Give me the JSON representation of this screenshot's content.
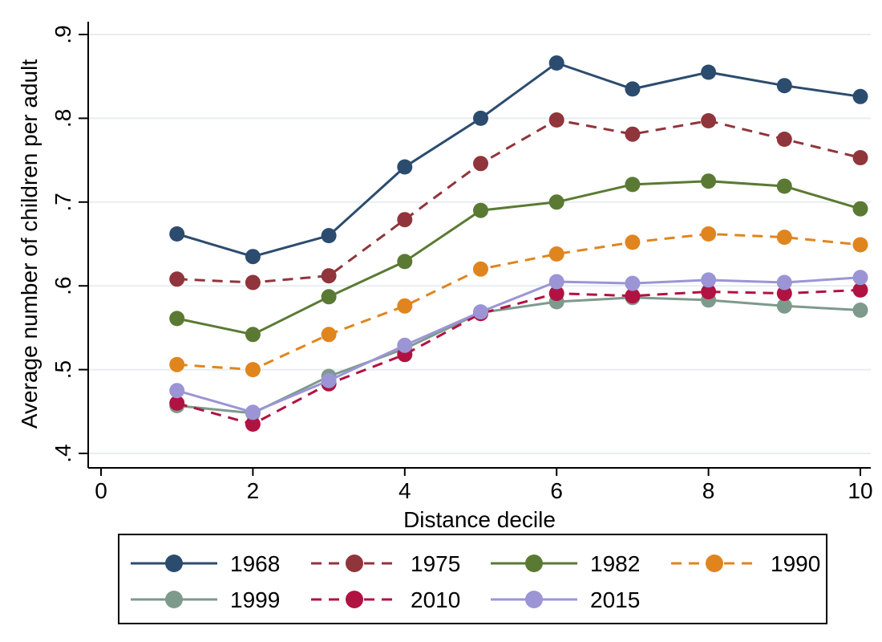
{
  "chart_data": {
    "type": "line",
    "title": "",
    "xlabel": "Distance decile",
    "ylabel": "Average number of children per adult",
    "xlim": [
      0,
      10
    ],
    "ylim": [
      0.4,
      0.9
    ],
    "x_ticks": [
      0,
      2,
      4,
      6,
      8,
      10
    ],
    "x_tick_labels": [
      "0",
      "2",
      "4",
      "6",
      "8",
      "10"
    ],
    "y_ticks": [
      0.4,
      0.5,
      0.6,
      0.7,
      0.8,
      0.9
    ],
    "y_tick_labels": [
      ".4",
      ".5",
      ".6",
      ".7",
      ".8",
      ".9"
    ],
    "grid": "horizontal-only",
    "legend_position": "bottom",
    "legend_rows": [
      [
        "1968",
        "1975",
        "1982",
        "1990"
      ],
      [
        "1999",
        "2010",
        "2015"
      ]
    ],
    "x": [
      1,
      2,
      3,
      4,
      5,
      6,
      7,
      8,
      9,
      10
    ],
    "series": [
      {
        "name": "1968",
        "color": "#2b4c6f",
        "style": "solid",
        "values": [
          0.662,
          0.635,
          0.66,
          0.742,
          0.8,
          0.866,
          0.835,
          0.855,
          0.839,
          0.826
        ]
      },
      {
        "name": "1975",
        "color": "#90353b",
        "style": "dashed",
        "values": [
          0.608,
          0.604,
          0.612,
          0.679,
          0.746,
          0.798,
          0.781,
          0.797,
          0.775,
          0.753
        ]
      },
      {
        "name": "1982",
        "color": "#5a7a33",
        "style": "solid",
        "values": [
          0.561,
          0.542,
          0.587,
          0.629,
          0.69,
          0.7,
          0.721,
          0.725,
          0.719,
          0.692
        ]
      },
      {
        "name": "1990",
        "color": "#e0851e",
        "style": "dashed",
        "values": [
          0.506,
          0.5,
          0.542,
          0.576,
          0.62,
          0.638,
          0.652,
          0.662,
          0.658,
          0.649
        ]
      },
      {
        "name": "1999",
        "color": "#7e9a8c",
        "style": "solid",
        "values": [
          0.457,
          0.448,
          0.492,
          0.525,
          0.568,
          0.581,
          0.586,
          0.583,
          0.576,
          0.571
        ]
      },
      {
        "name": "2010",
        "color": "#b01341",
        "style": "dashed",
        "values": [
          0.46,
          0.435,
          0.483,
          0.518,
          0.567,
          0.591,
          0.588,
          0.593,
          0.591,
          0.595
        ]
      },
      {
        "name": "2015",
        "color": "#9b95d6",
        "style": "solid",
        "values": [
          0.475,
          0.449,
          0.487,
          0.529,
          0.569,
          0.605,
          0.603,
          0.607,
          0.604,
          0.61
        ]
      }
    ],
    "colors": {
      "grid": "#e7eef1",
      "axis": "#000000",
      "background": "#ffffff",
      "legend_border": "#000000"
    }
  }
}
